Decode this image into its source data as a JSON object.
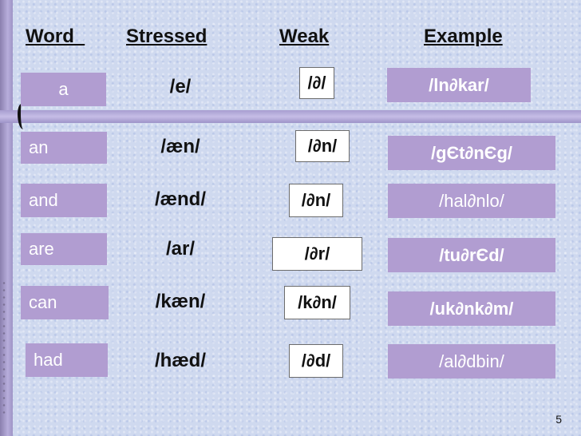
{
  "headers": {
    "word": "Word  ",
    "stressed": "Stressed",
    "weak": "Weak",
    "example": "Example"
  },
  "rows": [
    {
      "word": "a",
      "stressed": "/e/",
      "weak": "/∂/",
      "example": "/ln∂kar/"
    },
    {
      "word": "an",
      "stressed": "/æn/",
      "weak": "/∂n/",
      "example": "/gЄt∂nЄg/"
    },
    {
      "word": "and",
      "stressed": "/ænd/",
      "weak": "/∂n/",
      "example": "/hal∂nlo/"
    },
    {
      "word": "are",
      "stressed": "/ar/",
      "weak": "/∂r/",
      "example": "/tu∂rЄd/"
    },
    {
      "word": "can",
      "stressed": "/kæn/",
      "weak": "/k∂n/",
      "example": "/uk∂nk∂m/"
    },
    {
      "word": "had",
      "stressed": "/hæd/",
      "weak": "/∂d/",
      "example": "/al∂dbin/"
    }
  ],
  "page_number": "5"
}
